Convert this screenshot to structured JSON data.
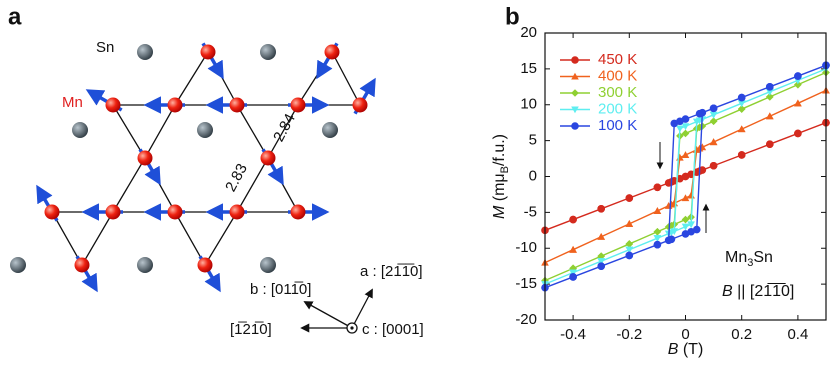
{
  "panel_a": {
    "label": "a",
    "sn_label": "Sn",
    "mn_label": "Mn",
    "distances": [
      "2.83",
      "2.84"
    ],
    "axes": {
      "b": "b : [011̅0]",
      "a": "a : [21̅1̅0]",
      "neg": "[1̅21̅0]",
      "c": "c : [0001]"
    }
  },
  "chart_data": {
    "type": "line",
    "panel_label": "b",
    "x_label": [
      "B",
      " (T)"
    ],
    "y_label": [
      "M",
      " (mμ",
      "B",
      "/f.u.)"
    ],
    "annotations": {
      "compound": [
        "Mn",
        "3",
        "Sn"
      ],
      "field": [
        "B",
        " || [21̅1̅0]"
      ]
    },
    "x": [
      0.5,
      0.4,
      0.3,
      0.2,
      0.1,
      0.05,
      0,
      -0.02,
      -0.04,
      -0.06,
      -0.1,
      -0.2,
      -0.3,
      -0.4,
      -0.5,
      -0.4,
      -0.3,
      -0.2,
      -0.1,
      -0.05,
      0,
      0.02,
      0.04,
      0.06,
      0.1,
      0.2,
      0.3,
      0.4,
      0.5
    ],
    "series": [
      {
        "name": "450 K",
        "color": "#d42a1e",
        "marker": "circle",
        "values": [
          7.5,
          6,
          4.5,
          3,
          1.5,
          0.75,
          0,
          -0.3,
          -0.6,
          -0.9,
          -1.5,
          -3,
          -4.5,
          -6,
          -7.5,
          -6,
          -4.5,
          -3,
          -1.5,
          -0.75,
          0,
          0.3,
          0.6,
          0.9,
          1.5,
          3,
          4.5,
          6,
          7.5
        ]
      },
      {
        "name": "400 K",
        "color": "#f0621e",
        "marker": "triangle",
        "values": [
          12,
          10.2,
          8.4,
          6.6,
          4.8,
          3.9,
          3,
          2.64,
          -3.72,
          -4.08,
          -4.8,
          -6.6,
          -8.4,
          -10.2,
          -12,
          -10.2,
          -8.4,
          -6.6,
          -4.8,
          -3.9,
          -3,
          -2.64,
          3.72,
          4.08,
          4.8,
          6.6,
          8.4,
          10.2,
          12
        ]
      },
      {
        "name": "300 K",
        "color": "#8fd032",
        "marker": "diamond",
        "values": [
          14.5,
          12.8,
          11.1,
          9.4,
          7.7,
          6.85,
          6,
          5.66,
          -6.68,
          -7.02,
          -7.7,
          -9.4,
          -11.1,
          -12.8,
          -14.5,
          -12.8,
          -11.1,
          -9.4,
          -7.7,
          -6.85,
          -6,
          -5.66,
          6.68,
          7.02,
          7.7,
          9.4,
          11.1,
          12.8,
          14.5
        ]
      },
      {
        "name": "200 K",
        "color": "#5eeef0",
        "marker": "triangle-down",
        "values": [
          15,
          13.4,
          11.8,
          10.2,
          8.6,
          7.8,
          7,
          6.68,
          -7.64,
          -7.96,
          -8.6,
          -10.2,
          -11.8,
          -13.4,
          -15,
          -13.4,
          -11.8,
          -10.2,
          -8.6,
          -7.8,
          -7,
          -6.68,
          7.64,
          7.96,
          8.6,
          10.2,
          11.8,
          13.4,
          15
        ]
      },
      {
        "name": "100 K",
        "color": "#2a46e0",
        "marker": "circle",
        "values": [
          15.5,
          14,
          12.5,
          11,
          9.5,
          8.75,
          8,
          7.7,
          7.4,
          -8.9,
          -9.5,
          -11,
          -12.5,
          -14,
          -15.5,
          -14,
          -12.5,
          -11,
          -9.5,
          -8.75,
          -8,
          -7.7,
          -7.4,
          8.9,
          9.5,
          11,
          12.5,
          14,
          15.5
        ]
      }
    ],
    "xlim": [
      -0.5,
      0.5
    ],
    "xticks": [
      -0.4,
      -0.2,
      0,
      0.2,
      0.4
    ],
    "ylim": [
      -20,
      20
    ],
    "yticks": [
      -20,
      -15,
      -10,
      -5,
      0,
      5,
      10,
      15,
      20
    ]
  }
}
